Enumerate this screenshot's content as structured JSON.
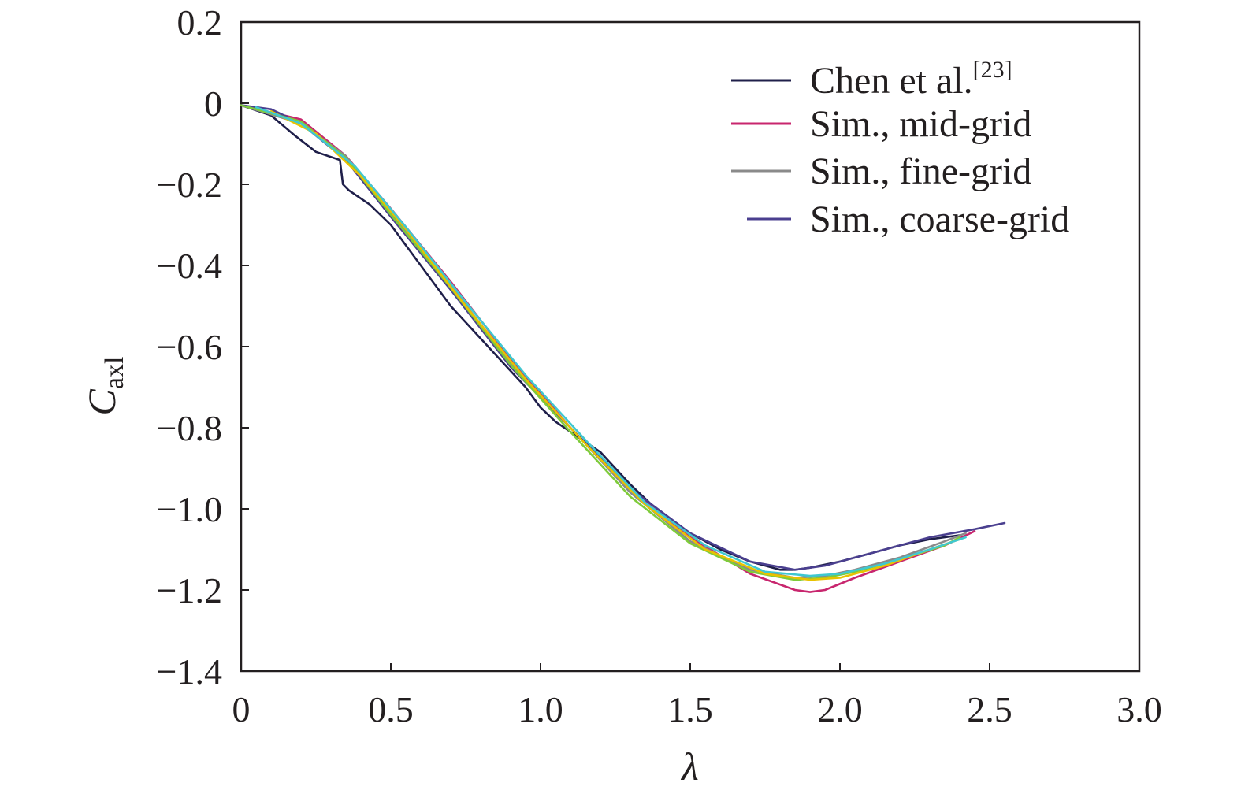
{
  "chart_data": {
    "type": "line",
    "xlabel": "λ",
    "ylabel": "C",
    "ylabel_subscript": "axl",
    "xlim": [
      0,
      3.0
    ],
    "ylim": [
      -1.4,
      0.2
    ],
    "x_ticks": [
      0,
      0.5,
      1.0,
      1.5,
      2.0,
      2.5,
      3.0
    ],
    "x_tick_labels": [
      "0",
      "0.5",
      "1.0",
      "1.5",
      "2.0",
      "2.5",
      "3.0"
    ],
    "y_ticks": [
      0.2,
      0,
      -0.2,
      -0.4,
      -0.6,
      -0.8,
      -1.0,
      -1.2,
      -1.4
    ],
    "y_tick_labels": [
      "0.2",
      "0",
      "−0.2",
      "−0.4",
      "−0.6",
      "−0.8",
      "−1.0",
      "−1.2",
      "−1.4"
    ],
    "grid": false,
    "legend_position": "top-right",
    "colors": {
      "axis": "#231f20"
    },
    "series": [
      {
        "name": "Chen et al.",
        "name_superscript": "[23]",
        "color": "#1f1f4a",
        "x": [
          0,
          0.1,
          0.18,
          0.25,
          0.33,
          0.34,
          0.36,
          0.43,
          0.5,
          0.6,
          0.7,
          0.8,
          0.9,
          0.95,
          1.0,
          1.05,
          1.1,
          1.2,
          1.3,
          1.4,
          1.5,
          1.6,
          1.7,
          1.8,
          1.85,
          1.9,
          2.0,
          2.1,
          2.2,
          2.3,
          2.4
        ],
        "y": [
          -0.005,
          -0.03,
          -0.08,
          -0.12,
          -0.14,
          -0.2,
          -0.215,
          -0.25,
          -0.3,
          -0.4,
          -0.5,
          -0.58,
          -0.66,
          -0.7,
          -0.75,
          -0.785,
          -0.81,
          -0.86,
          -0.94,
          -1.01,
          -1.06,
          -1.1,
          -1.13,
          -1.15,
          -1.15,
          -1.145,
          -1.13,
          -1.11,
          -1.09,
          -1.075,
          -1.065
        ]
      },
      {
        "name": "Sim., mid-grid",
        "color": "#c8266e",
        "x": [
          0,
          0.2,
          0.35,
          0.5,
          0.7,
          0.9,
          1.1,
          1.3,
          1.5,
          1.7,
          1.85,
          1.9,
          1.95,
          2.05,
          2.2,
          2.35,
          2.45
        ],
        "y": [
          -0.005,
          -0.04,
          -0.13,
          -0.26,
          -0.44,
          -0.63,
          -0.8,
          -0.95,
          -1.07,
          -1.16,
          -1.2,
          -1.205,
          -1.2,
          -1.17,
          -1.13,
          -1.09,
          -1.055
        ]
      },
      {
        "name": "Sim., fine-grid",
        "color": "#8a8a8a",
        "x": [
          0,
          0.2,
          0.35,
          0.5,
          0.7,
          0.9,
          1.1,
          1.3,
          1.5,
          1.7,
          1.85,
          1.95,
          2.05,
          2.2,
          2.35,
          2.42
        ],
        "y": [
          -0.005,
          -0.05,
          -0.13,
          -0.27,
          -0.45,
          -0.64,
          -0.8,
          -0.96,
          -1.08,
          -1.15,
          -1.17,
          -1.165,
          -1.15,
          -1.12,
          -1.08,
          -1.06
        ]
      },
      {
        "name": "Sim., coarse-grid",
        "color": "#4a3f8f",
        "x": [
          0,
          0.1,
          0.2,
          0.35,
          0.5,
          0.7,
          0.9,
          1.1,
          1.3,
          1.5,
          1.7,
          1.85,
          1.95,
          2.1,
          2.3,
          2.45,
          2.55
        ],
        "y": [
          -0.005,
          -0.015,
          -0.05,
          -0.14,
          -0.28,
          -0.46,
          -0.65,
          -0.8,
          -0.95,
          -1.06,
          -1.13,
          -1.15,
          -1.14,
          -1.11,
          -1.07,
          -1.05,
          -1.035
        ]
      },
      {
        "name": "",
        "color": "#7ecb3a",
        "x": [
          0,
          0.2,
          0.35,
          0.5,
          0.7,
          0.9,
          1.1,
          1.3,
          1.5,
          1.7,
          1.85,
          1.95,
          2.05,
          2.2,
          2.35,
          2.4
        ],
        "y": [
          -0.005,
          -0.045,
          -0.135,
          -0.275,
          -0.455,
          -0.645,
          -0.81,
          -0.97,
          -1.085,
          -1.155,
          -1.175,
          -1.17,
          -1.155,
          -1.125,
          -1.09,
          -1.07
        ]
      },
      {
        "name": "",
        "color": "#e8c200",
        "x": [
          0.1,
          0.25,
          0.4,
          0.55,
          0.75,
          0.95,
          1.15,
          1.35,
          1.55,
          1.75,
          1.9,
          2.0,
          2.15,
          2.3,
          2.4
        ],
        "y": [
          -0.02,
          -0.075,
          -0.18,
          -0.31,
          -0.5,
          -0.68,
          -0.84,
          -0.99,
          -1.1,
          -1.16,
          -1.175,
          -1.17,
          -1.14,
          -1.1,
          -1.075
        ]
      },
      {
        "name": "",
        "color": "#3fc8d0",
        "x": [
          0.05,
          0.2,
          0.38,
          0.55,
          0.75,
          0.95,
          1.15,
          1.35,
          1.55,
          1.75,
          1.9,
          2.0,
          2.15,
          2.3,
          2.42
        ],
        "y": [
          -0.01,
          -0.05,
          -0.155,
          -0.305,
          -0.49,
          -0.67,
          -0.83,
          -0.985,
          -1.09,
          -1.155,
          -1.165,
          -1.16,
          -1.135,
          -1.1,
          -1.07
        ]
      }
    ]
  }
}
